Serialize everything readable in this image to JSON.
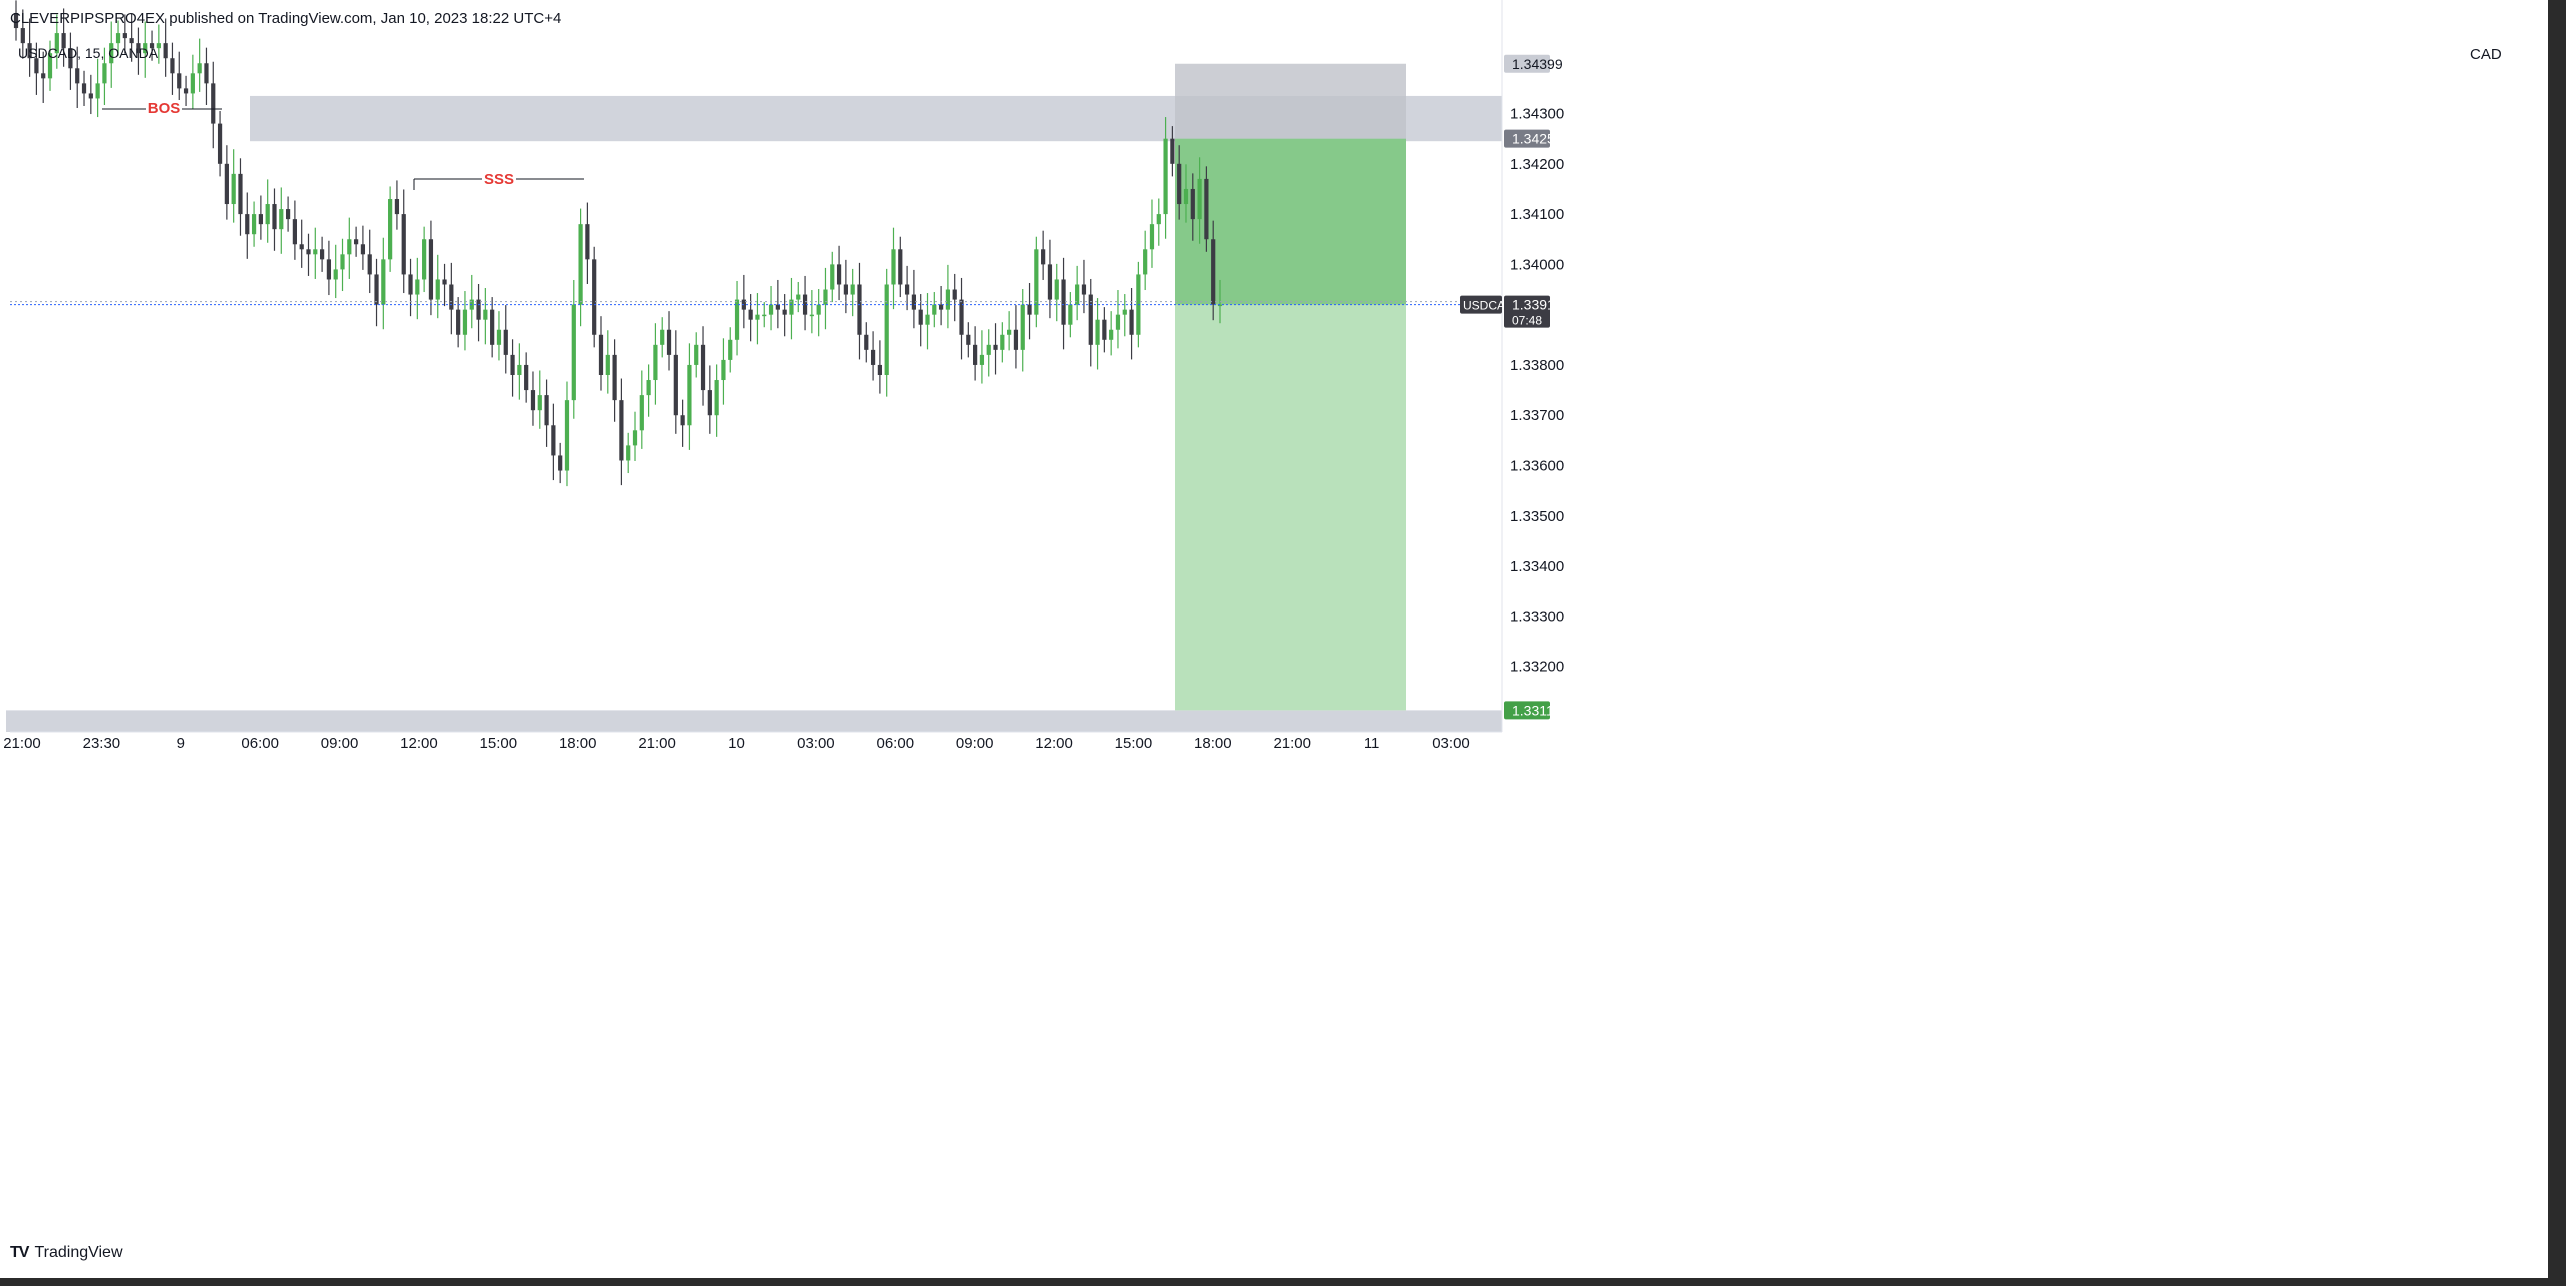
{
  "header": {
    "published_line": "CLEVERPIPSPRO4EX published on TradingView.com, Jan 10, 2023 18:22 UTC+4",
    "symbol_line": "USDCAD, 15, OANDA",
    "currency": "CAD"
  },
  "footer": {
    "brand": "TradingView",
    "logo_icon": "tradingview-logo-icon"
  },
  "colors": {
    "up": "#4caf50",
    "down": "#3c3c44",
    "zone": "#d1d4dc",
    "profit_dark": "#86c98a",
    "profit_light": "#b9e1bb",
    "stop": "#bfc2c9",
    "label_red": "#e53935",
    "current_price_line": "#2962ff"
  },
  "chart_data": {
    "type": "candlestick",
    "instrument": "USDCAD",
    "timeframe": "15",
    "x_ticks": [
      "21:00",
      "23:30",
      "9",
      "06:00",
      "09:00",
      "12:00",
      "15:00",
      "18:00",
      "21:00",
      "10",
      "03:00",
      "06:00",
      "09:00",
      "12:00",
      "15:00",
      "18:00",
      "21:00",
      "11",
      "03:00"
    ],
    "y_ticks": [
      "1.34300",
      "1.34200",
      "1.34100",
      "1.34000",
      "1.33800",
      "1.33700",
      "1.33600",
      "1.33500",
      "1.33400",
      "1.33300",
      "1.33200"
    ],
    "ylim": [
      1.3307,
      1.3449
    ],
    "price_labels": {
      "stop": "1.34399",
      "entry": "1.34250",
      "target": "1.33113",
      "current_symbol": "USDCAD",
      "current": "1.33918",
      "countdown": "07:48"
    },
    "annotations": [
      "BOS",
      "SSS"
    ],
    "zones": [
      {
        "name": "supply-zone",
        "from": 1.34245,
        "to": 1.34335
      },
      {
        "name": "demand-zone",
        "from": 1.3307,
        "to": 1.33113
      }
    ],
    "position": {
      "side": "short",
      "entry": 1.3425,
      "stop": 1.34399,
      "target": 1.33113
    },
    "closes": [
      1.3447,
      1.3444,
      1.3441,
      1.3438,
      1.3437,
      1.3442,
      1.3446,
      1.3443,
      1.3439,
      1.3436,
      1.3434,
      1.3433,
      1.3436,
      1.344,
      1.3444,
      1.3446,
      1.3445,
      1.3444,
      1.3442,
      1.3444,
      1.3443,
      1.3444,
      1.3441,
      1.3438,
      1.3435,
      1.3434,
      1.3438,
      1.344,
      1.3436,
      1.3428,
      1.342,
      1.3412,
      1.3418,
      1.341,
      1.3406,
      1.341,
      1.3408,
      1.3412,
      1.3407,
      1.3411,
      1.3409,
      1.3404,
      1.3403,
      1.3402,
      1.3403,
      1.3401,
      1.3397,
      1.3399,
      1.3402,
      1.3405,
      1.3404,
      1.3402,
      1.3398,
      1.3392,
      1.3401,
      1.3413,
      1.341,
      1.3398,
      1.3394,
      1.3397,
      1.3405,
      1.3393,
      1.3397,
      1.3396,
      1.3391,
      1.3386,
      1.3391,
      1.3393,
      1.3389,
      1.3391,
      1.3384,
      1.3387,
      1.3382,
      1.3378,
      1.338,
      1.3375,
      1.3371,
      1.3374,
      1.3368,
      1.3362,
      1.3359,
      1.3373,
      1.3392,
      1.3408,
      1.3401,
      1.3386,
      1.3378,
      1.3382,
      1.3373,
      1.3361,
      1.3364,
      1.3367,
      1.3374,
      1.3377,
      1.3384,
      1.3387,
      1.3382,
      1.337,
      1.3368,
      1.338,
      1.3384,
      1.3375,
      1.337,
      1.3377,
      1.3381,
      1.3385,
      1.3393,
      1.3391,
      1.3389,
      1.339,
      1.339,
      1.3392,
      1.3391,
      1.339,
      1.3393,
      1.3394,
      1.339,
      1.339,
      1.3392,
      1.3395,
      1.34,
      1.3396,
      1.3394,
      1.3396,
      1.3386,
      1.3383,
      1.338,
      1.3378,
      1.3396,
      1.3403,
      1.3396,
      1.3394,
      1.3391,
      1.3388,
      1.339,
      1.3392,
      1.3391,
      1.3395,
      1.3393,
      1.3386,
      1.3384,
      1.338,
      1.3382,
      1.3384,
      1.3383,
      1.3386,
      1.3387,
      1.3383,
      1.3392,
      1.339,
      1.3403,
      1.34,
      1.3393,
      1.3397,
      1.3388,
      1.3392,
      1.3396,
      1.3394,
      1.3384,
      1.3389,
      1.3385,
      1.3387,
      1.339,
      1.3391,
      1.3386,
      1.3398,
      1.3403,
      1.3408,
      1.341,
      1.3425,
      1.342,
      1.3412,
      1.3415,
      1.3409,
      1.3417,
      1.3405,
      1.3392,
      1.3392
    ]
  }
}
